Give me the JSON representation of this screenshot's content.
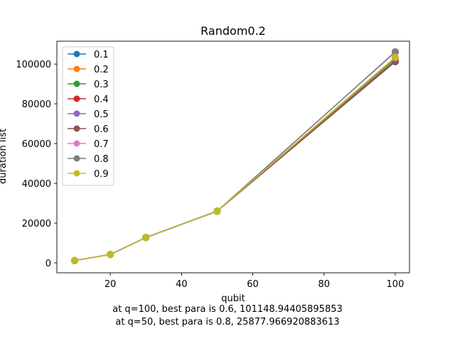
{
  "chart_data": {
    "type": "line",
    "title": "Random0.2",
    "xlabel": "qubit",
    "ylabel": "duration list",
    "x": [
      10,
      20,
      30,
      50,
      100
    ],
    "xlim": [
      5,
      104
    ],
    "ylim": [
      -5000,
      111500
    ],
    "xticks": [
      20,
      40,
      60,
      80,
      100
    ],
    "yticks": [
      0,
      20000,
      40000,
      60000,
      80000,
      100000
    ],
    "grid": false,
    "legend_position": "top-left",
    "series": [
      {
        "name": "0.1",
        "color": "#1f77b4",
        "values": [
          1150,
          4200,
          12700,
          26000,
          101800
        ]
      },
      {
        "name": "0.2",
        "color": "#ff7f0e",
        "values": [
          1150,
          4250,
          12800,
          26050,
          102500
        ]
      },
      {
        "name": "0.3",
        "color": "#2ca02c",
        "values": [
          1150,
          4200,
          12750,
          26000,
          102800
        ]
      },
      {
        "name": "0.4",
        "color": "#d62728",
        "values": [
          1150,
          4200,
          12700,
          26000,
          101300
        ]
      },
      {
        "name": "0.5",
        "color": "#9467bd",
        "values": [
          1150,
          4250,
          12800,
          26100,
          106000
        ]
      },
      {
        "name": "0.6",
        "color": "#8c564b",
        "values": [
          1150,
          4200,
          12700,
          25950,
          101148.94
        ]
      },
      {
        "name": "0.7",
        "color": "#e377c2",
        "values": [
          1150,
          4200,
          12750,
          26000,
          103200
        ]
      },
      {
        "name": "0.8",
        "color": "#7f7f7f",
        "values": [
          1150,
          4250,
          12800,
          25877.97,
          106200
        ]
      },
      {
        "name": "0.9",
        "color": "#bcbd22",
        "values": [
          1150,
          4200,
          12700,
          26000,
          103500
        ]
      }
    ]
  },
  "captions": {
    "line1": "at q=100, best para is 0.6, 101148.94405895853",
    "line2": "at q=50, best para is 0.8, 25877.966920883613"
  }
}
